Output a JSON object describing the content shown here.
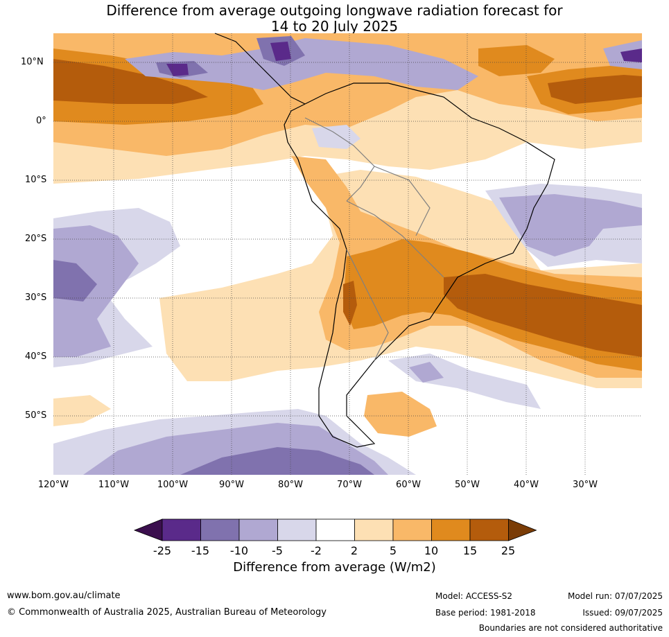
{
  "title": {
    "line1": "Difference from average outgoing longwave radiation forecast for",
    "line2": "14 to 20 July 2025"
  },
  "axes": {
    "lat_labels": [
      "10°N",
      "0°",
      "10°S",
      "20°S",
      "30°S",
      "40°S",
      "50°S"
    ],
    "lon_labels": [
      "120°W",
      "110°W",
      "100°W",
      "90°W",
      "80°W",
      "70°W",
      "60°W",
      "50°W",
      "40°W",
      "30°W"
    ]
  },
  "colorbar": {
    "tick_labels": [
      "-25",
      "-15",
      "-10",
      "-5",
      "-2",
      "2",
      "5",
      "10",
      "15",
      "25"
    ],
    "title": "Difference from average (W/m2)",
    "colors": [
      "#3b0f4e",
      "#5a2a8a",
      "#8072ae",
      "#b0a8d2",
      "#d8d7ea",
      "#ffffff",
      "#fde0b4",
      "#f9b868",
      "#e08a1e",
      "#b45c0c",
      "#7a3c06"
    ]
  },
  "footer": {
    "url": "www.bom.gov.au/climate",
    "copyright": "© Commonwealth of Australia 2025, Australian Bureau of Meteorology",
    "model": "Model: ACCESS-S2",
    "base_period": "Base period: 1981-2018",
    "model_run": "Model run: 07/07/2025",
    "issued": "Issued: 09/07/2025",
    "disclaimer": "Boundaries are not considered authoritative"
  }
}
